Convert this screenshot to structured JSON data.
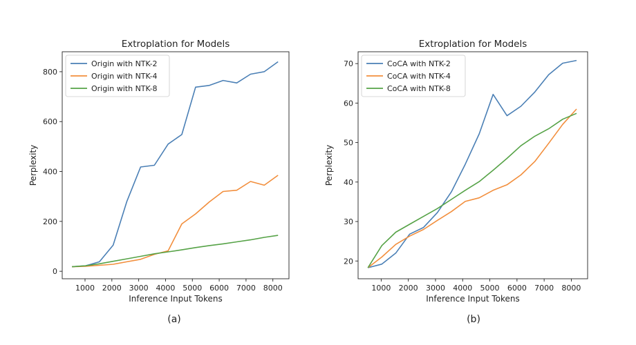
{
  "captions": [
    "(a)",
    "(b)"
  ],
  "chart_data": [
    {
      "type": "line",
      "title": "Extroplation for Models",
      "xlabel": "Inference Input Tokens",
      "ylabel": "Perplexity",
      "xlim": [
        150,
        8600
      ],
      "ylim": [
        -30,
        880
      ],
      "xticks": [
        1000,
        2000,
        3000,
        4000,
        5000,
        6000,
        7000,
        8000
      ],
      "yticks": [
        0,
        200,
        400,
        600,
        800
      ],
      "legend": "top-left",
      "x": [
        512,
        1024,
        1536,
        2048,
        2560,
        3072,
        3584,
        4096,
        4608,
        5120,
        5632,
        6144,
        6656,
        7168,
        7680,
        8192
      ],
      "series": [
        {
          "name": "Origin with NTK-2",
          "color": "#4a7fb5",
          "values": [
            18,
            22,
            38,
            105,
            280,
            418,
            425,
            510,
            548,
            738,
            745,
            765,
            755,
            790,
            800,
            840
          ]
        },
        {
          "name": "Origin with NTK-4",
          "color": "#f28e3c",
          "values": [
            18,
            20,
            24,
            28,
            38,
            48,
            68,
            82,
            190,
            230,
            278,
            320,
            325,
            360,
            345,
            385
          ]
        },
        {
          "name": "Origin with NTK-8",
          "color": "#55a246",
          "values": [
            18,
            22,
            30,
            40,
            50,
            60,
            70,
            78,
            86,
            95,
            103,
            110,
            118,
            126,
            136,
            144
          ]
        }
      ]
    },
    {
      "type": "line",
      "title": "Extroplation for Models",
      "xlabel": "Inference Input Tokens",
      "ylabel": "Perplexity",
      "xlim": [
        150,
        8600
      ],
      "ylim": [
        15.5,
        73
      ],
      "xticks": [
        1000,
        2000,
        3000,
        4000,
        5000,
        6000,
        7000,
        8000
      ],
      "yticks": [
        20,
        30,
        40,
        50,
        60,
        70
      ],
      "legend": "top-left",
      "x": [
        512,
        1024,
        1536,
        2048,
        2560,
        3072,
        3584,
        4096,
        4608,
        5120,
        5632,
        6144,
        6656,
        7168,
        7680,
        8192
      ],
      "series": [
        {
          "name": "CoCA with NTK-2",
          "color": "#4a7fb5",
          "values": [
            18.3,
            19.2,
            22.0,
            26.8,
            28.5,
            32.3,
            37.5,
            44.5,
            52.2,
            62.2,
            56.8,
            59.2,
            62.8,
            67.2,
            70.1,
            70.8
          ]
        },
        {
          "name": "CoCA with NTK-4",
          "color": "#f28e3c",
          "values": [
            18.3,
            21.0,
            24.2,
            26.3,
            28.0,
            30.3,
            32.5,
            35.1,
            36.0,
            37.9,
            39.3,
            41.8,
            45.2,
            49.8,
            54.6,
            58.5
          ]
        },
        {
          "name": "CoCA with NTK-8",
          "color": "#55a246",
          "values": [
            18.3,
            23.9,
            27.3,
            29.3,
            31.3,
            33.3,
            35.6,
            37.9,
            40.1,
            43.0,
            46.0,
            49.2,
            51.6,
            53.5,
            55.9,
            57.4
          ]
        }
      ]
    }
  ]
}
